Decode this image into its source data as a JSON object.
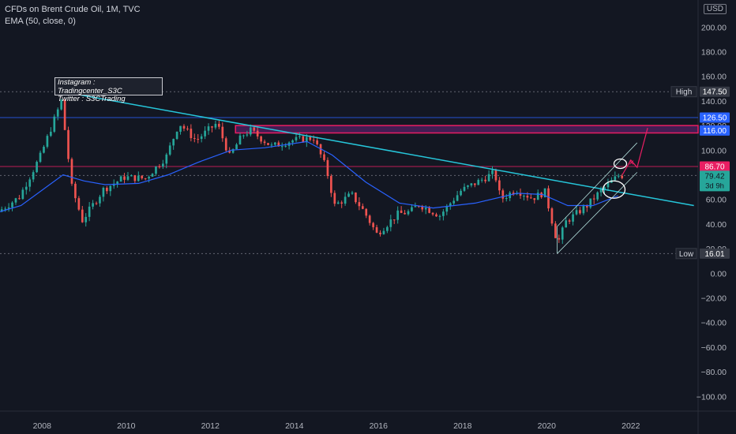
{
  "header": {
    "title": "CFDs on Brent Crude Oil, 1M, TVC",
    "indicator": "EMA (50, close, 0)",
    "currency": "USD"
  },
  "annotation": {
    "line1": "Instagram : Tradingcenter_S3C",
    "line2": "Twitter : S3CTrading"
  },
  "colors": {
    "background": "#131722",
    "up": "#26a69a",
    "down": "#ef5350",
    "ema": "#2962ff",
    "trendline": "#26c6da",
    "resistance": "#e91e63",
    "zone": "#9c27b0"
  },
  "chart_data": {
    "type": "candlestick",
    "title": "CFDs on Brent Crude Oil, 1M, TVC",
    "y_ticks": [
      "−100.00",
      "−80.00",
      "−60.00",
      "−40.00",
      "−20.00",
      "0.00",
      "20.00",
      "40.00",
      "60.00",
      "80.00",
      "100.00",
      "120.00",
      "140.00",
      "160.00",
      "180.00",
      "200.00"
    ],
    "x_ticks": [
      "2008",
      "2010",
      "2012",
      "2014",
      "2016",
      "2018",
      "2020",
      "2022"
    ],
    "ylim": [
      -112,
      222
    ],
    "xlim": [
      2007.0,
      2023.6
    ],
    "price_labels": [
      {
        "name": "High",
        "value": 147.5,
        "text": "147.50"
      },
      {
        "name": "",
        "value": 126.5,
        "text": "126.50"
      },
      {
        "name": "",
        "value": 116.0,
        "text": "116.00"
      },
      {
        "name": "",
        "value": 86.7,
        "text": "86.70"
      },
      {
        "name": "",
        "value": 79.42,
        "text": "79.42",
        "sub": "3d 9h"
      },
      {
        "name": "Low",
        "value": 16.01,
        "text": "16.01"
      }
    ],
    "anchors": [
      [
        2007.0,
        50
      ],
      [
        2007.5,
        62
      ],
      [
        2008.0,
        95
      ],
      [
        2008.5,
        140
      ],
      [
        2008.75,
        70
      ],
      [
        2009.0,
        43
      ],
      [
        2009.5,
        68
      ],
      [
        2010.0,
        78
      ],
      [
        2010.5,
        77
      ],
      [
        2011.0,
        95
      ],
      [
        2011.3,
        122
      ],
      [
        2011.7,
        108
      ],
      [
        2012.2,
        122
      ],
      [
        2012.5,
        95
      ],
      [
        2012.8,
        112
      ],
      [
        2013.0,
        116
      ],
      [
        2013.5,
        103
      ],
      [
        2014.0,
        108
      ],
      [
        2014.5,
        110
      ],
      [
        2014.8,
        85
      ],
      [
        2015.0,
        55
      ],
      [
        2015.4,
        64
      ],
      [
        2015.7,
        50
      ],
      [
        2016.0,
        32
      ],
      [
        2016.5,
        48
      ],
      [
        2016.8,
        50
      ],
      [
        2017.0,
        56
      ],
      [
        2017.5,
        47
      ],
      [
        2018.0,
        67
      ],
      [
        2018.5,
        76
      ],
      [
        2018.8,
        82
      ],
      [
        2018.95,
        60
      ],
      [
        2019.3,
        68
      ],
      [
        2019.7,
        61
      ],
      [
        2020.0,
        66
      ],
      [
        2020.3,
        24
      ],
      [
        2020.5,
        42
      ],
      [
        2021.0,
        55
      ],
      [
        2021.3,
        66
      ],
      [
        2021.6,
        75
      ],
      [
        2021.75,
        79.4
      ]
    ],
    "ema_anchors": [
      [
        2007.0,
        50
      ],
      [
        2007.5,
        55
      ],
      [
        2008.5,
        80
      ],
      [
        2009.0,
        75
      ],
      [
        2009.5,
        72
      ],
      [
        2010.3,
        73
      ],
      [
        2011.0,
        80
      ],
      [
        2011.7,
        90
      ],
      [
        2012.5,
        100
      ],
      [
        2013.3,
        102
      ],
      [
        2014.3,
        107
      ],
      [
        2014.9,
        96
      ],
      [
        2015.7,
        74
      ],
      [
        2016.5,
        57
      ],
      [
        2017.3,
        53
      ],
      [
        2018.3,
        57
      ],
      [
        2019.3,
        65
      ],
      [
        2019.9,
        64
      ],
      [
        2020.5,
        55
      ],
      [
        2021.1,
        55
      ],
      [
        2021.7,
        63
      ]
    ],
    "trendline": [
      [
        2008.4,
        148
      ],
      [
        2023.5,
        55
      ]
    ],
    "channel": {
      "lower": [
        [
          2020.25,
          16
        ],
        [
          2021.75,
          68
        ]
      ],
      "upper": [
        [
          2020.25,
          38
        ],
        [
          2021.75,
          92
        ]
      ]
    },
    "projection": [
      [
        2021.8,
        80
      ],
      [
        2022.0,
        92
      ],
      [
        2022.15,
        86
      ],
      [
        2022.4,
        118
      ]
    ],
    "zone": [
      114,
      120
    ],
    "zone_from": 2012.6
  }
}
